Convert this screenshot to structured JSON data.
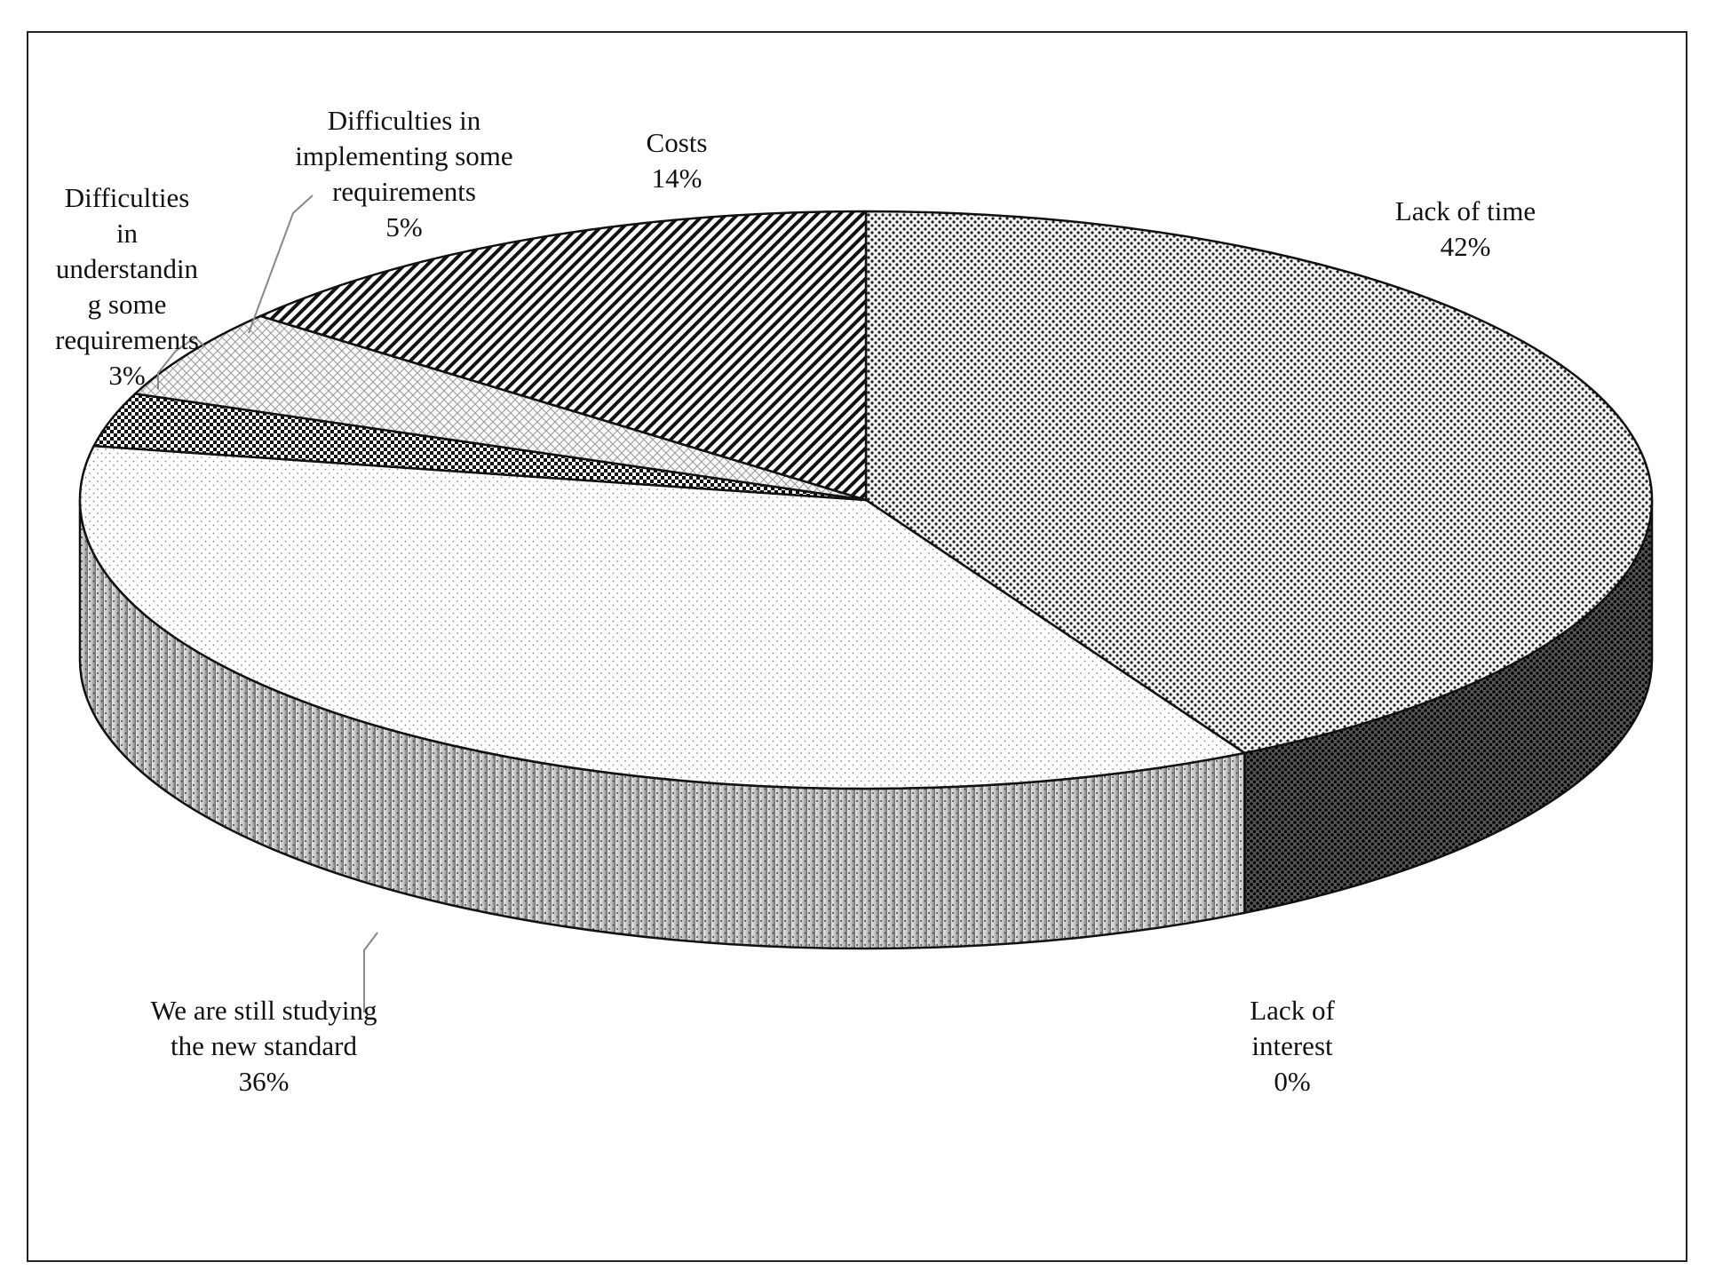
{
  "chart_data": {
    "type": "pie",
    "style": "3d",
    "title": "",
    "slices": [
      {
        "label": "Lack of time",
        "value": 42,
        "display": "42%",
        "pattern": "dots-dark"
      },
      {
        "label": "Lack of interest",
        "value": 0,
        "display": "0%",
        "pattern": "none"
      },
      {
        "label": "We are still studying the new standard",
        "value": 36,
        "display": "36%",
        "pattern": "dots-light"
      },
      {
        "label": "Difficulties in understanding some requirements",
        "value": 3,
        "display": "3%",
        "pattern": "checker"
      },
      {
        "label": "Difficulties in implementing some requirements",
        "value": 5,
        "display": "5%",
        "pattern": "crosshatch-light"
      },
      {
        "label": "Costs",
        "value": 14,
        "display": "14%",
        "pattern": "diagonal-stripes"
      }
    ],
    "label_lines": {
      "lack_of_time": [
        "Lack of time",
        "42%"
      ],
      "lack_of_interest": [
        "Lack of",
        "interest",
        "0%"
      ],
      "studying": [
        "We are still studying",
        "the new standard",
        "36%"
      ],
      "understanding": [
        "Difficulties",
        "in",
        "understandin",
        "g some",
        "requirements",
        "3%"
      ],
      "implementing": [
        "Difficulties in",
        "implementing some",
        "requirements",
        "5%"
      ],
      "costs": [
        "Costs",
        "14%"
      ]
    },
    "legend": "none",
    "colors": {
      "ink": "#111111",
      "side_light": "#d8d8d8",
      "side_dark": "#7a7a7a"
    }
  }
}
